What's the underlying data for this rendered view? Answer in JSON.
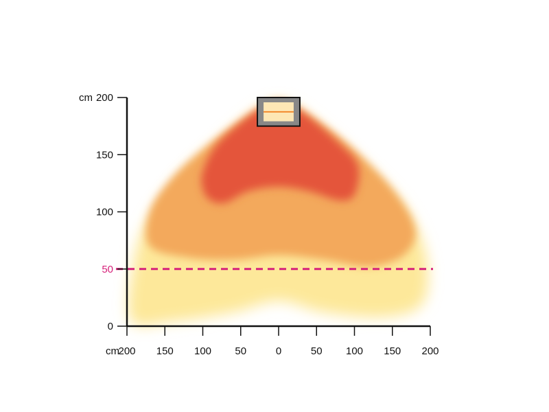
{
  "chart_data": {
    "type": "heatmap",
    "title": "",
    "xlabel": "",
    "ylabel": "",
    "x_unit": "cm",
    "y_unit": "cm",
    "x_ticks": [
      "200",
      "150",
      "100",
      "50",
      "0",
      "50",
      "100",
      "150",
      "200"
    ],
    "x_tick_values": [
      -200,
      -150,
      -100,
      -50,
      0,
      50,
      100,
      150,
      200
    ],
    "y_ticks": [
      "0",
      "50",
      "100",
      "150",
      "200"
    ],
    "y_tick_values": [
      0,
      50,
      100,
      150,
      200
    ],
    "xlim": [
      -200,
      200
    ],
    "ylim": [
      0,
      200
    ],
    "reference_line": {
      "y": 50,
      "label": "50",
      "style": "dashed",
      "color": "#d6217a"
    },
    "heater": {
      "x_range": [
        -28,
        28
      ],
      "y_range": [
        175,
        200
      ]
    },
    "zones": [
      {
        "level": "low",
        "color": "#fde89a",
        "outline": [
          [
            -195,
            5
          ],
          [
            -190,
            60
          ],
          [
            -170,
            95
          ],
          [
            -130,
            130
          ],
          [
            -80,
            160
          ],
          [
            -30,
            188
          ],
          [
            0,
            196
          ],
          [
            30,
            188
          ],
          [
            80,
            160
          ],
          [
            130,
            130
          ],
          [
            170,
            100
          ],
          [
            195,
            60
          ],
          [
            190,
            20
          ],
          [
            140,
            8
          ],
          [
            60,
            12
          ],
          [
            0,
            22
          ],
          [
            -60,
            12
          ],
          [
            -140,
            4
          ]
        ]
      },
      {
        "level": "medium",
        "color": "#f3a95c",
        "outline": [
          [
            -170,
            70
          ],
          [
            -170,
            100
          ],
          [
            -140,
            130
          ],
          [
            -90,
            160
          ],
          [
            -30,
            188
          ],
          [
            0,
            196
          ],
          [
            30,
            188
          ],
          [
            90,
            160
          ],
          [
            150,
            120
          ],
          [
            180,
            85
          ],
          [
            165,
            62
          ],
          [
            120,
            52
          ],
          [
            60,
            58
          ],
          [
            0,
            62
          ],
          [
            -60,
            58
          ],
          [
            -120,
            60
          ]
        ]
      },
      {
        "level": "high",
        "color": "#e4553b",
        "outline": [
          [
            -100,
            120
          ],
          [
            -100,
            135
          ],
          [
            -80,
            160
          ],
          [
            -30,
            188
          ],
          [
            0,
            196
          ],
          [
            30,
            188
          ],
          [
            80,
            160
          ],
          [
            105,
            140
          ],
          [
            100,
            115
          ],
          [
            80,
            110
          ],
          [
            40,
            118
          ],
          [
            0,
            122
          ],
          [
            -40,
            118
          ],
          [
            -70,
            108
          ],
          [
            -90,
            110
          ]
        ]
      }
    ]
  }
}
